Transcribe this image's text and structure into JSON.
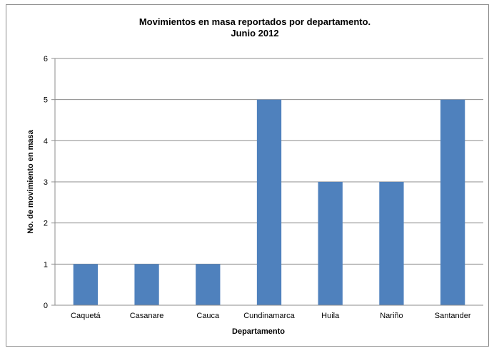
{
  "chart_data": {
    "type": "bar",
    "title": "Movimientos en masa reportados por departamento.",
    "subtitle": "Junio 2012",
    "xlabel": "Departamento",
    "ylabel": "No. de movimiento en masa",
    "categories": [
      "Caquetá",
      "Casanare",
      "Cauca",
      "Cundinamarca",
      "Huila",
      "Nariño",
      "Santander"
    ],
    "values": [
      1,
      1,
      1,
      5,
      3,
      3,
      5
    ],
    "ylim": [
      0,
      6
    ],
    "yticks": [
      "0",
      "1",
      "2",
      "3",
      "4",
      "5",
      "6"
    ],
    "grid": true,
    "legend": "none",
    "bar_color": "#4f81bd",
    "grid_color": "#8c8c8c"
  }
}
